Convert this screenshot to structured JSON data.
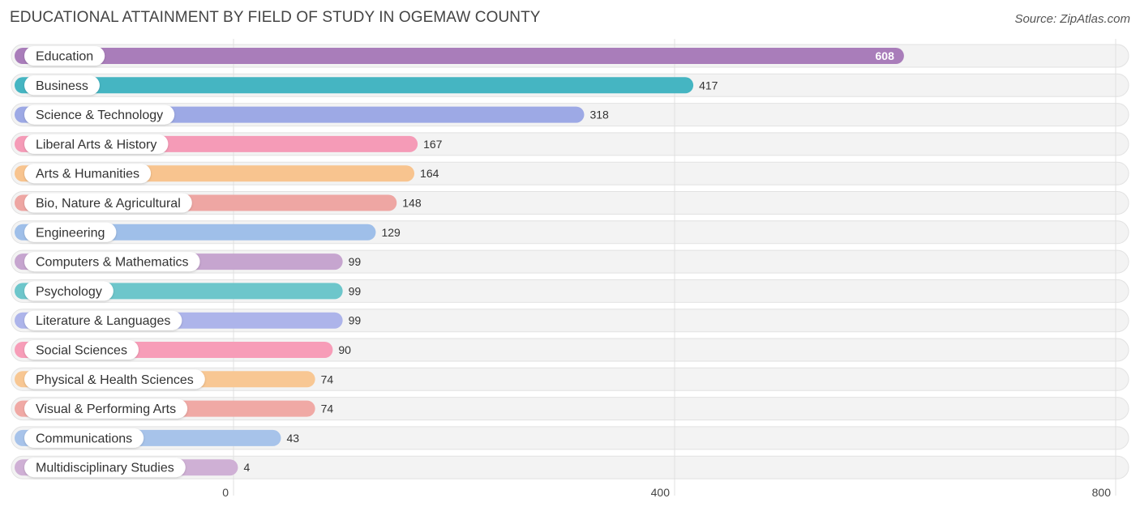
{
  "chart_data": {
    "type": "bar",
    "orientation": "horizontal",
    "title": "EDUCATIONAL ATTAINMENT BY FIELD OF STUDY IN OGEMAW COUNTY",
    "source": "Source: ZipAtlas.com",
    "xlabel": "",
    "ylabel": "",
    "xlim": [
      0,
      800
    ],
    "ticks": [
      0,
      400,
      800
    ],
    "tick_labels": [
      "0",
      "400",
      "800"
    ],
    "grid": true,
    "categories": [
      "Education",
      "Business",
      "Science & Technology",
      "Liberal Arts & History",
      "Arts & Humanities",
      "Bio, Nature & Agricultural",
      "Engineering",
      "Computers & Mathematics",
      "Psychology",
      "Literature & Languages",
      "Social Sciences",
      "Physical & Health Sciences",
      "Visual & Performing Arts",
      "Communications",
      "Multidisciplinary Studies"
    ],
    "values": [
      608,
      417,
      318,
      167,
      164,
      148,
      129,
      99,
      99,
      99,
      90,
      74,
      74,
      43,
      4
    ],
    "value_labels": [
      "608",
      "417",
      "318",
      "167",
      "164",
      "148",
      "129",
      "99",
      "99",
      "99",
      "90",
      "74",
      "74",
      "43",
      "4"
    ],
    "colors": [
      "#a97dba",
      "#45b5c2",
      "#9da9e5",
      "#f59bb7",
      "#f8c48f",
      "#eea6a3",
      "#9fbfe9",
      "#c6a5cf",
      "#6dc6cb",
      "#adb4ea",
      "#f79db8",
      "#f8c793",
      "#f0a9a5",
      "#a7c3ea",
      "#cfb0d5"
    ]
  }
}
